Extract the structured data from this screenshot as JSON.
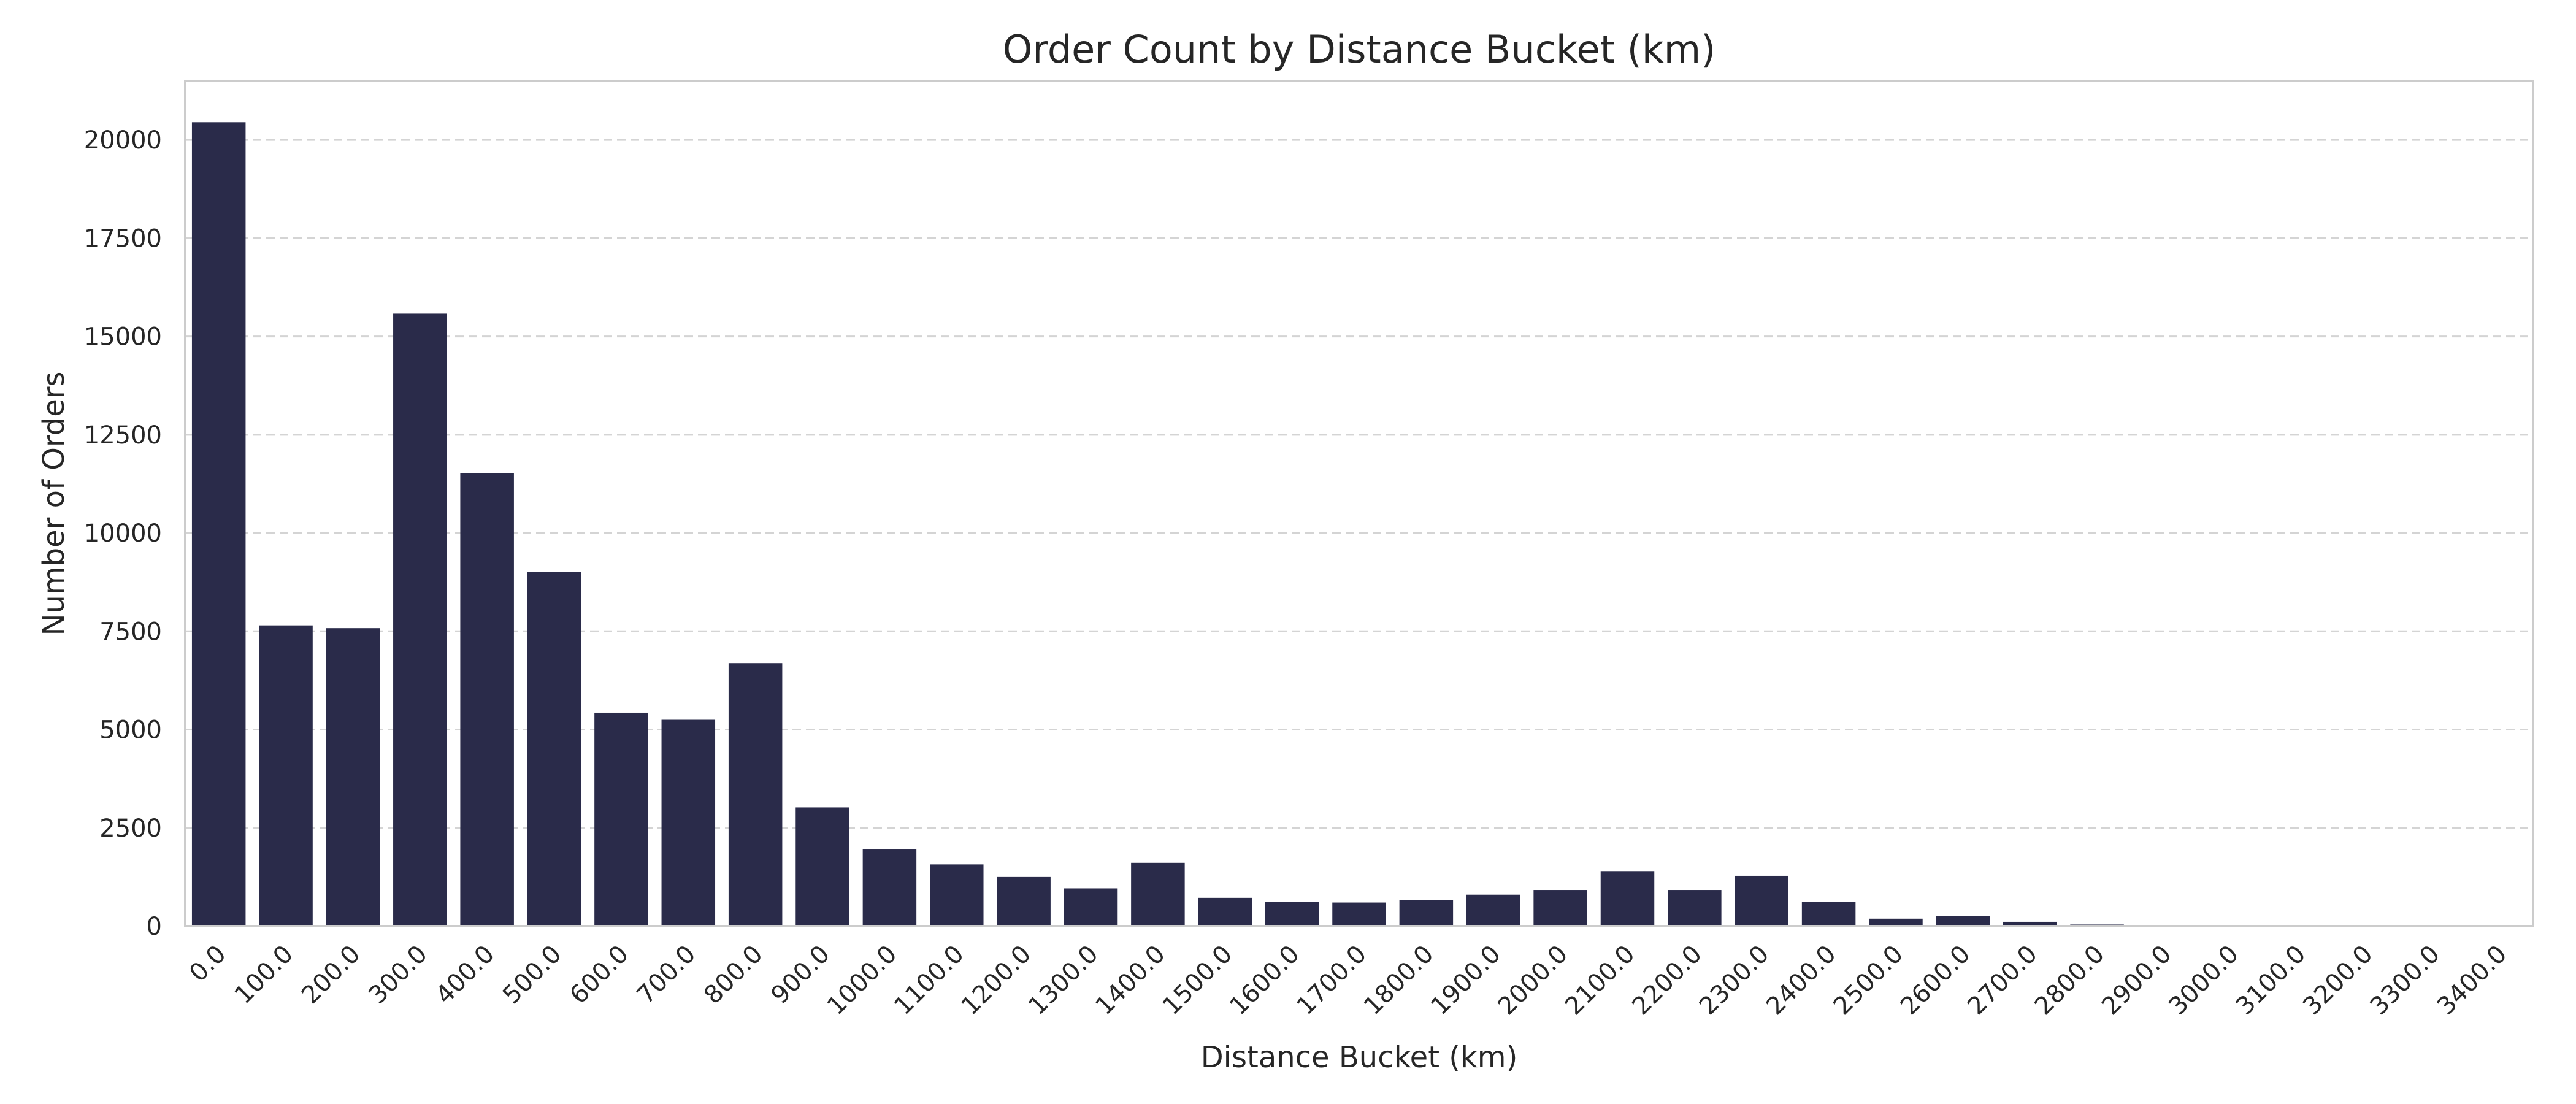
{
  "chart_data": {
    "type": "bar",
    "title": "Order Count by Distance Bucket (km)",
    "xlabel": "Distance Bucket (km)",
    "ylabel": "Number of Orders",
    "categories": [
      "0.0",
      "100.0",
      "200.0",
      "300.0",
      "400.0",
      "500.0",
      "600.0",
      "700.0",
      "800.0",
      "900.0",
      "1000.0",
      "1100.0",
      "1200.0",
      "1300.0",
      "1400.0",
      "1500.0",
      "1600.0",
      "1700.0",
      "1800.0",
      "1900.0",
      "2000.0",
      "2100.0",
      "2200.0",
      "2300.0",
      "2400.0",
      "2500.0",
      "2600.0",
      "2700.0",
      "2800.0",
      "2900.0",
      "3000.0",
      "3100.0",
      "3200.0",
      "3300.0",
      "3400.0"
    ],
    "values": [
      20450,
      7650,
      7580,
      15580,
      11530,
      9010,
      5430,
      5250,
      6690,
      3020,
      1950,
      1570,
      1250,
      960,
      1610,
      720,
      610,
      600,
      660,
      800,
      920,
      1400,
      920,
      1280,
      610,
      190,
      260,
      110,
      40,
      10,
      5,
      30,
      5,
      3,
      2
    ],
    "ylim": [
      0,
      21500
    ],
    "yticks": [
      0,
      2500,
      5000,
      7500,
      10000,
      12500,
      15000,
      17500,
      20000
    ],
    "grid": "y-dashed",
    "legend": "none",
    "colors": {
      "bar": "#2a2b4a",
      "grid": "#d4d4d4",
      "frame": "#cccccc",
      "text": "#262626"
    }
  }
}
